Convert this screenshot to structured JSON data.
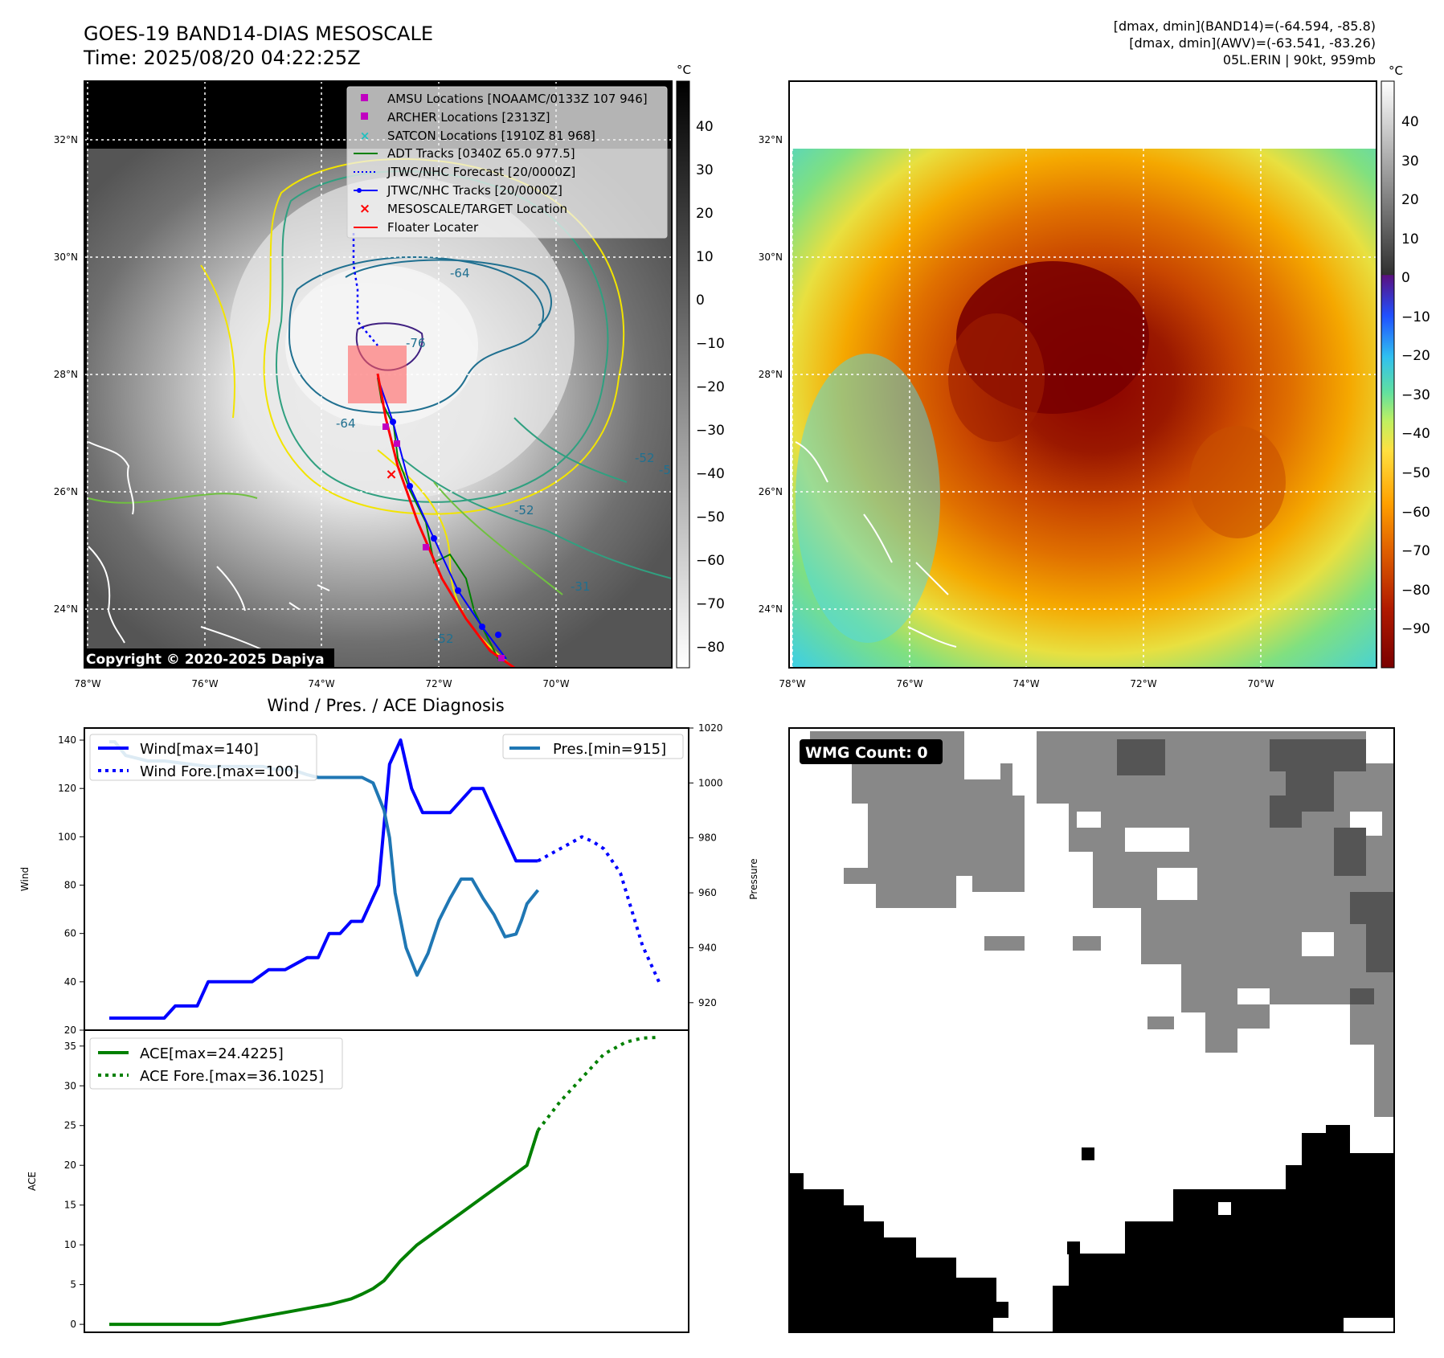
{
  "header": {
    "title": "GOES-19 BAND14-DIAS MESOSCALE",
    "time": "Time: 2025/08/20 04:22:25Z",
    "stats_band14": "[dmax, dmin](BAND14)=(-64.594, -85.8)",
    "stats_awv": "[dmax, dmin](AWV)=(-63.541, -83.26)",
    "storm": "05L.ERIN | 90kt, 959mb"
  },
  "map": {
    "lat_labels": [
      "32°N",
      "30°N",
      "28°N",
      "26°N",
      "24°N"
    ],
    "lon_labels": [
      "78°W",
      "76°W",
      "74°W",
      "72°W",
      "70°W"
    ],
    "colorbar_unit": "°C",
    "left_colorbar_ticks": [
      "40",
      "30",
      "20",
      "10",
      "0",
      "−10",
      "−20",
      "−30",
      "−40",
      "−50",
      "−60",
      "−70",
      "−80"
    ],
    "right_colorbar_ticks": [
      "40",
      "30",
      "20",
      "10",
      "0",
      "−10",
      "−20",
      "−30",
      "−40",
      "−50",
      "−60",
      "−70",
      "−80",
      "−90"
    ],
    "contour_labels": [
      "-64",
      "-76",
      "-64",
      "-52",
      "-52",
      "-31",
      "-52",
      "-52"
    ],
    "copyright": "Copyright © 2020-2025 Dapiya",
    "legend": [
      {
        "label": "AMSU Locations [NOAAMC/0133Z 107 946]",
        "color": "#c000c0",
        "marker": "square"
      },
      {
        "label": "ARCHER Locations [2313Z]",
        "color": "#c000c0",
        "marker": "square"
      },
      {
        "label": "SATCON Locations [1910Z 81 968]",
        "color": "#20c0c0",
        "marker": "x"
      },
      {
        "label": "ADT Tracks [0340Z 65.0 977.5]",
        "color": "#008000",
        "marker": "line"
      },
      {
        "label": "JTWC/NHC Forecast [20/0000Z]",
        "color": "#0000ff",
        "marker": "dotted"
      },
      {
        "label": "JTWC/NHC Tracks [20/0000Z]",
        "color": "#0000ff",
        "marker": "line-dot"
      },
      {
        "label": "MESOSCALE/TARGET Location",
        "color": "#ff0000",
        "marker": "x"
      },
      {
        "label": "Floater Locater",
        "color": "#ff0000",
        "marker": "line"
      }
    ]
  },
  "wmg": {
    "label": "WMG Count: 0"
  },
  "chart_data": [
    {
      "type": "line",
      "title": "Wind / Pres. / ACE Diagnosis",
      "ylabel": "Wind",
      "y2label": "Pressure",
      "ylim": [
        20,
        145
      ],
      "y2lim": [
        910,
        1020
      ],
      "yticks": [
        "20",
        "40",
        "60",
        "80",
        "100",
        "120",
        "140"
      ],
      "y2ticks": [
        "920",
        "940",
        "960",
        "980",
        "1000",
        "1020"
      ],
      "x": [
        0,
        1,
        2,
        3,
        4,
        5,
        6,
        7,
        8,
        9,
        10,
        11,
        12,
        13,
        14,
        15,
        16,
        17,
        18,
        19,
        20,
        21,
        22,
        23,
        24,
        25,
        26,
        27,
        28,
        29,
        30,
        31,
        32,
        33,
        34,
        35,
        36,
        37,
        38,
        39,
        40,
        41,
        42,
        43,
        44,
        45,
        46,
        47,
        48,
        49,
        50,
        51,
        52,
        53,
        54,
        55,
        56,
        57,
        58,
        59,
        60,
        61,
        62,
        63,
        64,
        65,
        66,
        67,
        68,
        69,
        70,
        71,
        72,
        73,
        74,
        75,
        76,
        77,
        78,
        79,
        80,
        81,
        82,
        83,
        84,
        85,
        86,
        87,
        88,
        89,
        90,
        91,
        92,
        93,
        94,
        95,
        96,
        97,
        98,
        99,
        100
      ],
      "series": [
        {
          "name": "Wind[max=140]",
          "color": "#0000ff",
          "style": "solid",
          "x": [
            0,
            6,
            10,
            12,
            16,
            18,
            22,
            26,
            29,
            32,
            36,
            38,
            40,
            42,
            44,
            46,
            48,
            49,
            51,
            53,
            55,
            57,
            58,
            60,
            62,
            64,
            66,
            68,
            70,
            72,
            74,
            78
          ],
          "values": [
            25,
            25,
            25,
            30,
            30,
            40,
            40,
            40,
            45,
            45,
            50,
            50,
            60,
            60,
            65,
            65,
            75,
            80,
            130,
            140,
            120,
            110,
            110,
            110,
            110,
            115,
            120,
            120,
            110,
            100,
            90,
            90
          ]
        },
        {
          "name": "Wind Fore.[max=100]",
          "color": "#0000ff",
          "style": "dotted",
          "x": [
            78,
            82,
            86,
            88,
            90,
            93,
            95,
            97,
            99,
            100
          ],
          "values": [
            90,
            95,
            100,
            98,
            95,
            85,
            70,
            55,
            45,
            40
          ]
        },
        {
          "name": "Pres.[min=915]",
          "color": "#1f77b4",
          "style": "solid",
          "axis": "right",
          "x": [
            0,
            1,
            3,
            5,
            7,
            10,
            14,
            18,
            22,
            25,
            28,
            30,
            33,
            36,
            38,
            40,
            42,
            44,
            46,
            48,
            49,
            50,
            51,
            52,
            54,
            56,
            58,
            60,
            62,
            64,
            66,
            68,
            70,
            72,
            74,
            75,
            76,
            78
          ],
          "values": [
            1015,
            1015,
            1010,
            1009,
            1008,
            1008,
            1007,
            1006,
            1006,
            1006,
            1006,
            1005,
            1005,
            1003,
            1002,
            1002,
            1002,
            1002,
            1002,
            1000,
            995,
            990,
            980,
            960,
            940,
            930,
            938,
            950,
            958,
            965,
            965,
            958,
            952,
            944,
            945,
            950,
            956,
            961
          ]
        }
      ]
    },
    {
      "type": "line",
      "ylabel": "ACE",
      "ylim": [
        -1,
        37
      ],
      "yticks": [
        "0",
        "5",
        "10",
        "15",
        "20",
        "25",
        "30",
        "35"
      ],
      "series": [
        {
          "name": "ACE[max=24.4225]",
          "color": "#008000",
          "style": "solid",
          "x": [
            0,
            6,
            12,
            16,
            20,
            24,
            28,
            32,
            36,
            40,
            44,
            46,
            48,
            50,
            53,
            56,
            60,
            64,
            68,
            72,
            76,
            78
          ],
          "values": [
            0,
            0,
            0,
            0,
            0,
            0.5,
            1,
            1.5,
            2,
            2.5,
            3.2,
            3.8,
            4.5,
            5.5,
            8,
            10,
            12,
            14,
            16,
            18,
            20,
            24.4
          ]
        },
        {
          "name": "ACE Fore.[max=36.1025]",
          "color": "#008000",
          "style": "dotted",
          "x": [
            78,
            82,
            86,
            90,
            94,
            97,
            100
          ],
          "values": [
            24.4,
            28,
            31,
            34,
            35.5,
            36,
            36.1
          ]
        }
      ]
    }
  ]
}
